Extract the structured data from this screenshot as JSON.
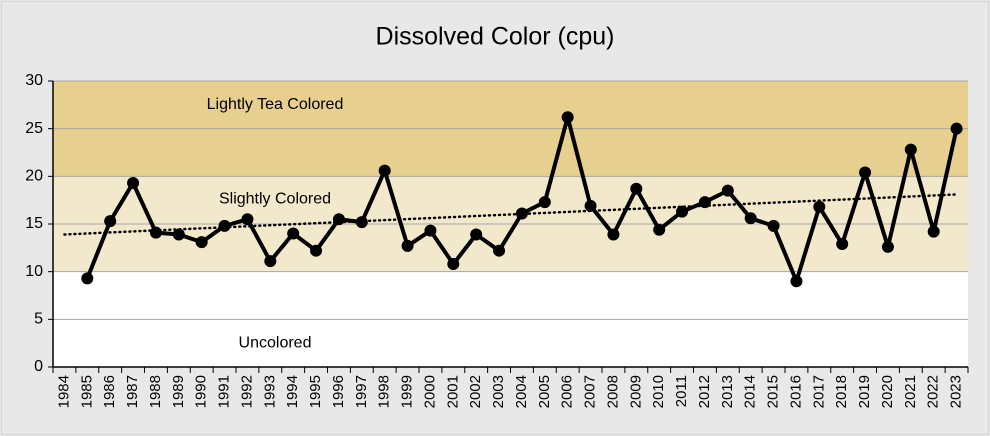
{
  "chart_data": {
    "type": "line",
    "title": "Dissolved Color (cpu)",
    "categories": [
      "1984",
      "1985",
      "1986",
      "1987",
      "1988",
      "1989",
      "1990",
      "1991",
      "1992",
      "1993",
      "1994",
      "1995",
      "1996",
      "1997",
      "1998",
      "1999",
      "2000",
      "2001",
      "2002",
      "2003",
      "2004",
      "2005",
      "2006",
      "2007",
      "2008",
      "2009",
      "2010",
      "2011",
      "2012",
      "2013",
      "2014",
      "2015",
      "2016",
      "2017",
      "2018",
      "2019",
      "2020",
      "2021",
      "2022",
      "2023"
    ],
    "series": [
      {
        "color": "#000000",
        "values": [
          null,
          9.3,
          15.3,
          19.3,
          14.1,
          13.9,
          13.1,
          14.8,
          15.5,
          11.1,
          14.0,
          12.2,
          15.5,
          15.2,
          20.6,
          12.7,
          14.3,
          10.8,
          13.9,
          12.2,
          16.1,
          17.3,
          26.2,
          16.9,
          13.9,
          18.7,
          14.4,
          16.3,
          17.3,
          18.5,
          15.6,
          14.8,
          9.0,
          16.8,
          12.9,
          20.4,
          12.6,
          22.8,
          14.2,
          25.0
        ]
      }
    ],
    "trendline": {
      "values": [
        13.9,
        18.1
      ]
    },
    "bands": [
      {
        "label": "Uncolored",
        "from": 0,
        "to": 10,
        "color": "#ffffff"
      },
      {
        "label": "Slightly Colored",
        "from": 10,
        "to": 20,
        "color": "#f2e8cc"
      },
      {
        "label": "Lightly Tea Colored",
        "from": 20,
        "to": 30,
        "color": "#e6cf8f"
      }
    ],
    "ylim": [
      0,
      30
    ],
    "yticks": [
      0,
      5,
      10,
      15,
      20,
      25,
      30
    ],
    "grid": true
  }
}
